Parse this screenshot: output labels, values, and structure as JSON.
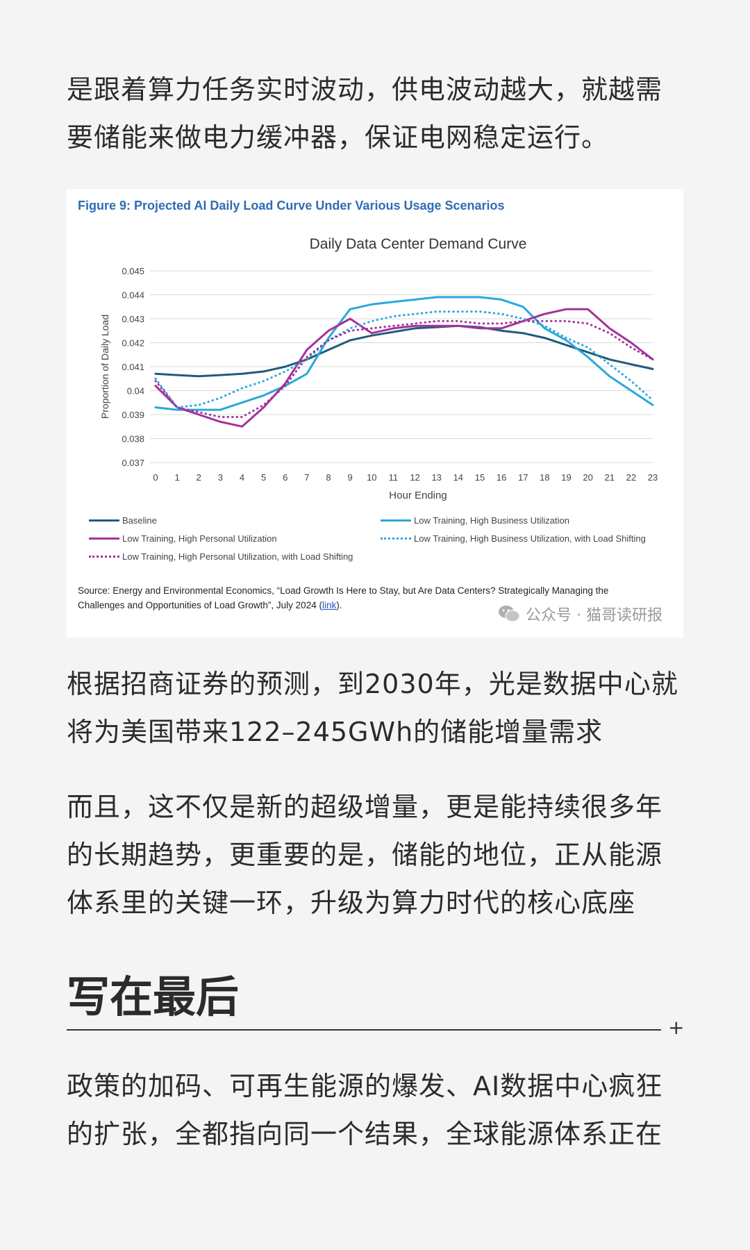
{
  "article": {
    "para1": "是跟着算力任务实时波动，供电波动越大，就越需要储能来做电力缓冲器，保证电网稳定运行。",
    "para2": "根据招商证券的预测，到2030年，光是数据中心就将为美国带来122–245GWh的储能增量需求",
    "para3": "而且，这不仅是新的超级增量，更是能持续很多年的长期趋势，更重要的是，储能的地位，正从能源体系里的关键一环，升级为算力时代的核心底座",
    "heading": "写在最后",
    "plus": "+",
    "para5": "政策的加码、可再生能源的爆发、AI数据中心疯狂的扩张，全都指向同一个结果，全球能源体系正在"
  },
  "figure": {
    "caption": "Figure 9: Projected AI Daily Load Curve Under Various Usage Scenarios",
    "source_text": "Source: Energy and Environmental Economics, “Load Growth Is Here to Stay, but Are Data Centers? Strategically Managing the Challenges and Opportunities of Load Growth”, July 2024 (",
    "source_link": "link",
    "source_end": ").",
    "watermark": "公众号 · 猫哥读研报",
    "watermark_icon": "wechat-icon"
  },
  "chart_data": {
    "type": "line",
    "title": "Daily Data Center Demand Curve",
    "xlabel": "Hour Ending",
    "ylabel": "Proportion of Daily Load",
    "x": [
      0,
      1,
      2,
      3,
      4,
      5,
      6,
      7,
      8,
      9,
      10,
      11,
      12,
      13,
      14,
      15,
      16,
      17,
      18,
      19,
      20,
      21,
      22,
      23
    ],
    "ylim": [
      0.037,
      0.045
    ],
    "yticks": [
      "0.045",
      "0.044",
      "0.043",
      "0.042",
      "0.041",
      "0.04",
      "0.039",
      "0.038",
      "0.037"
    ],
    "grid": true,
    "legend_position": "bottom",
    "series": [
      {
        "name": "Baseline",
        "color": "#1f5c7a",
        "style": "solid",
        "values": [
          0.0407,
          0.04065,
          0.0406,
          0.04065,
          0.0407,
          0.0408,
          0.041,
          0.0413,
          0.0417,
          0.0421,
          0.0423,
          0.04245,
          0.0426,
          0.04265,
          0.0427,
          0.04265,
          0.0425,
          0.0424,
          0.0422,
          0.0419,
          0.0416,
          0.0413,
          0.0411,
          0.0409
        ]
      },
      {
        "name": "Low Training, High Business Utilization",
        "color": "#29a8dc",
        "style": "solid",
        "values": [
          0.0393,
          0.0392,
          0.0392,
          0.0392,
          0.0395,
          0.0398,
          0.0402,
          0.0407,
          0.0422,
          0.0434,
          0.0436,
          0.0437,
          0.0438,
          0.0439,
          0.0439,
          0.0439,
          0.0438,
          0.0435,
          0.0426,
          0.0421,
          0.0414,
          0.0406,
          0.04,
          0.0394
        ]
      },
      {
        "name": "Low Training, High Personal Utilization",
        "color": "#a3329a",
        "style": "solid",
        "values": [
          0.0402,
          0.0393,
          0.039,
          0.0387,
          0.0385,
          0.0393,
          0.0403,
          0.0417,
          0.0425,
          0.043,
          0.0424,
          0.0426,
          0.0427,
          0.0427,
          0.0427,
          0.0426,
          0.0426,
          0.0429,
          0.0432,
          0.0434,
          0.0434,
          0.0426,
          0.042,
          0.0413
        ]
      },
      {
        "name": "Low Training, High Business Utilization, with Load Shifting",
        "color": "#29a8dc",
        "style": "dotted",
        "values": [
          0.0405,
          0.0393,
          0.0394,
          0.0397,
          0.0401,
          0.0404,
          0.0408,
          0.0413,
          0.0421,
          0.0426,
          0.0429,
          0.0431,
          0.0432,
          0.0433,
          0.0433,
          0.0433,
          0.0432,
          0.043,
          0.0427,
          0.0422,
          0.0418,
          0.0411,
          0.0404,
          0.0396
        ]
      },
      {
        "name": "Low Training, High Personal Utilization, with Load Shifting",
        "color": "#a3329a",
        "style": "dotted",
        "values": [
          0.0404,
          0.0393,
          0.0391,
          0.0389,
          0.0389,
          0.0394,
          0.0402,
          0.0414,
          0.0421,
          0.0425,
          0.0426,
          0.0427,
          0.0428,
          0.0429,
          0.0429,
          0.0428,
          0.0428,
          0.0429,
          0.0429,
          0.0429,
          0.0428,
          0.0424,
          0.0418,
          0.0413
        ]
      }
    ]
  }
}
